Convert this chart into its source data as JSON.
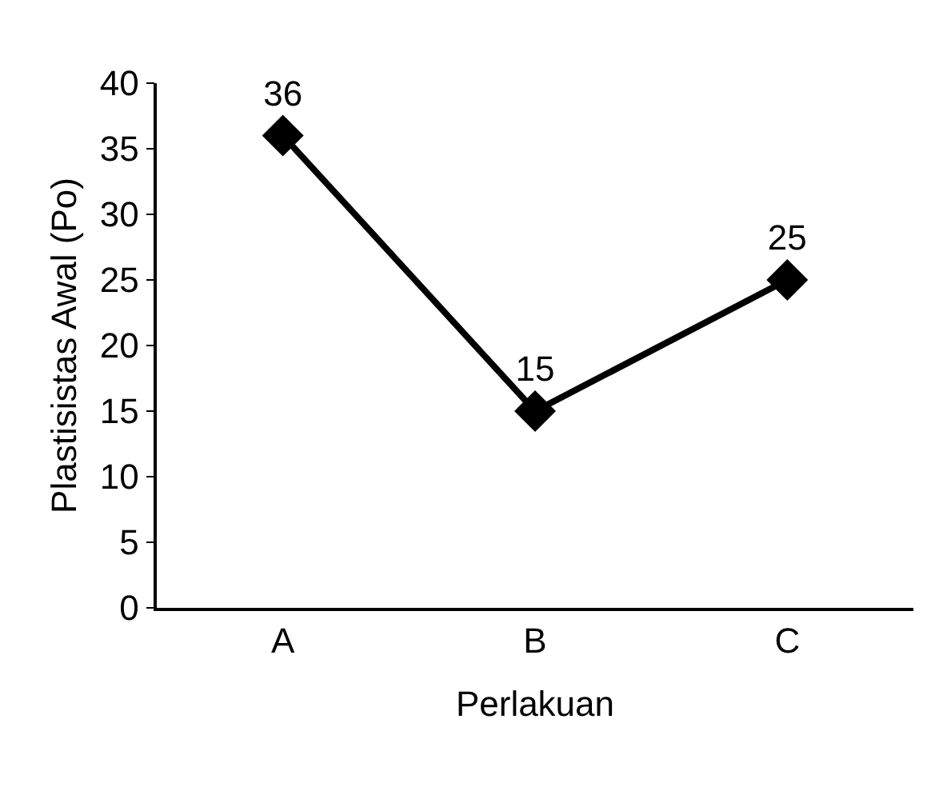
{
  "chart_data": {
    "type": "line",
    "xlabel": "Perlakuan",
    "ylabel": "Plastisistas Awal (Po)",
    "categories": [
      "A",
      "B",
      "C"
    ],
    "series": [
      {
        "color": "#000000",
        "values": [
          36,
          15,
          25
        ]
      }
    ],
    "ylim": [
      0,
      40
    ],
    "yticks": [
      0,
      5,
      10,
      15,
      20,
      25,
      30,
      35,
      40
    ],
    "marker": "diamond",
    "line_style": "solid",
    "data_labels": true
  }
}
